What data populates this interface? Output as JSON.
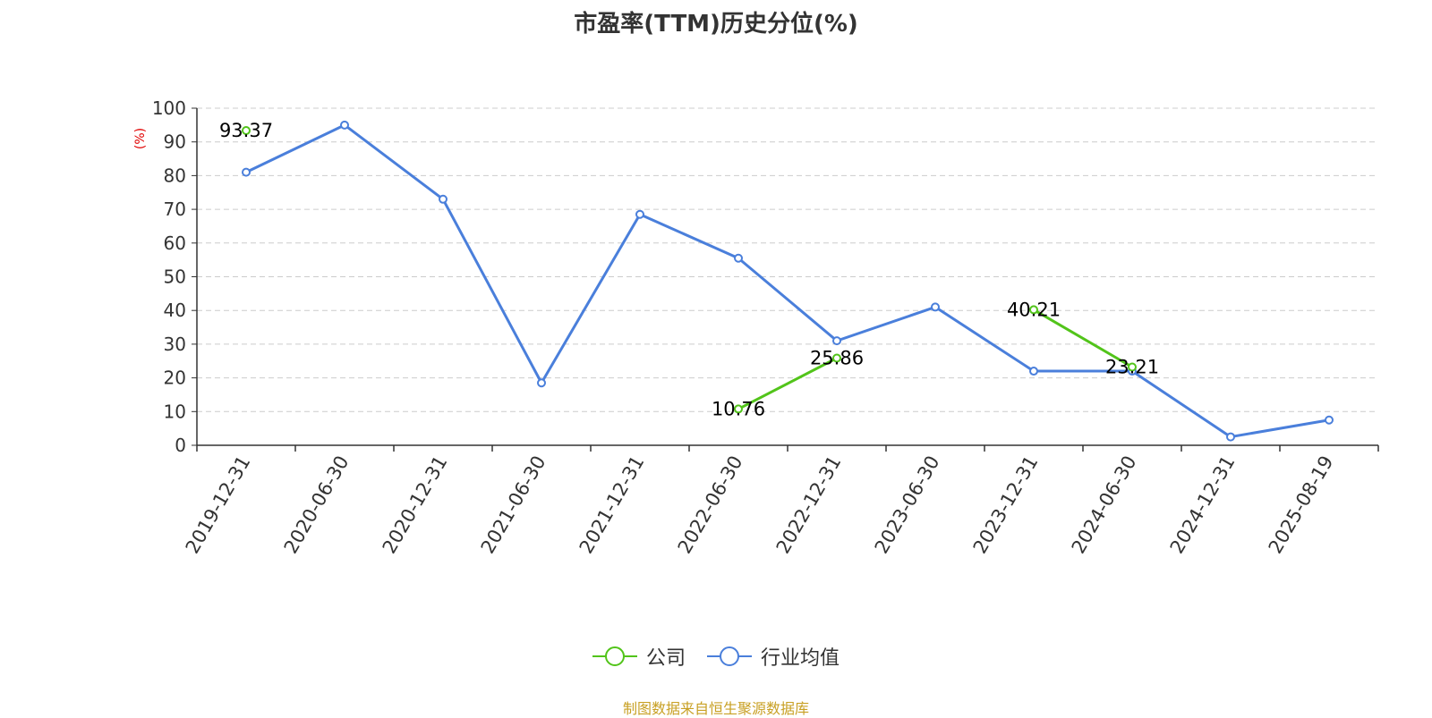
{
  "chart_data": {
    "type": "line",
    "title": "市盈率(TTM)历史分位(%)",
    "ylabel": "(%)",
    "xlabel": "",
    "ylim": [
      0,
      100
    ],
    "yticks": [
      0,
      10,
      20,
      30,
      40,
      50,
      60,
      70,
      80,
      90,
      100
    ],
    "grid": true,
    "legend_position": "bottom-center",
    "categories": [
      "2019-12-31",
      "2020-06-30",
      "2020-12-31",
      "2021-06-30",
      "2021-12-31",
      "2022-06-30",
      "2022-12-31",
      "2023-06-30",
      "2023-12-31",
      "2024-06-30",
      "2024-12-31",
      "2025-08-19"
    ],
    "series": [
      {
        "name": "公司",
        "color": "#52c41a",
        "values": [
          93.37,
          null,
          null,
          null,
          null,
          10.76,
          25.86,
          null,
          40.21,
          23.21,
          null,
          null
        ],
        "labels": [
          "93.37",
          null,
          null,
          null,
          null,
          "10.76",
          "25.86",
          null,
          "40.21",
          "23.21",
          null,
          null
        ]
      },
      {
        "name": "行业均值",
        "color": "#4a7fdb",
        "values": [
          81,
          95,
          73,
          18.5,
          68.5,
          55.5,
          31,
          41,
          22,
          22,
          2.5,
          7.5
        ]
      }
    ]
  },
  "source": "制图数据来自恒生聚源数据库"
}
